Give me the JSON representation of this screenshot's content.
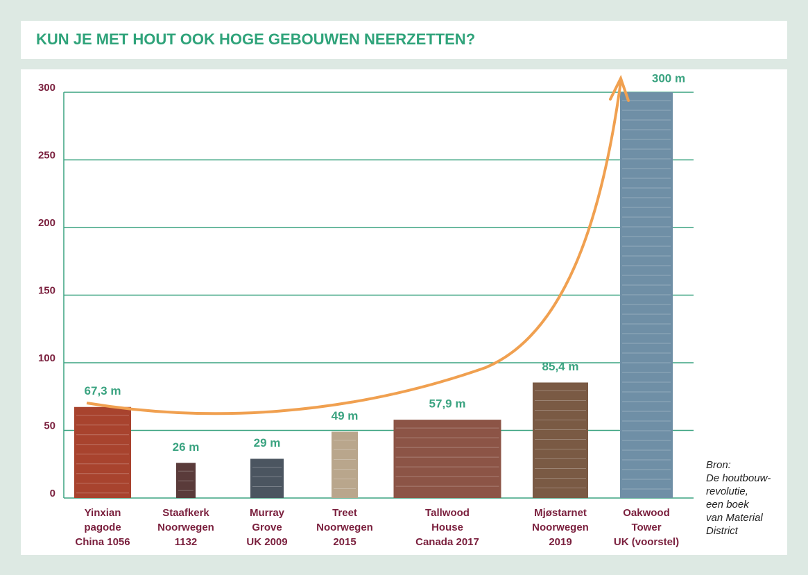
{
  "chart_data": {
    "type": "bar",
    "title": "KUN JE MET HOUT OOK HOGE GEBOUWEN NEERZETTEN?",
    "categories": [
      [
        "Yinxian",
        "pagode",
        "China 1056"
      ],
      [
        "Staafkerk",
        "Noorwegen",
        "1132"
      ],
      [
        "Murray",
        "Grove",
        "UK 2009"
      ],
      [
        "Treet",
        "Noorwegen",
        "2015"
      ],
      [
        "Tallwood",
        "House",
        "Canada 2017"
      ],
      [
        "Mjøstarnet",
        "Noorwegen",
        "2019"
      ],
      [
        "Oakwood",
        "Tower",
        "UK (voorstel)"
      ]
    ],
    "values": [
      67.3,
      26,
      29,
      49,
      57.9,
      85.4,
      300
    ],
    "value_labels": [
      "67,3 m",
      "26 m",
      "29 m",
      "49 m",
      "57,9 m",
      "85,4 m",
      "300 m"
    ],
    "colors": [
      "#a8432e",
      "#5a3b3a",
      "#4b5560",
      "#b9a68c",
      "#8c5446",
      "#7a5a44",
      "#6f8fa6"
    ],
    "ylim": [
      0,
      300
    ],
    "yticks": [
      0,
      50,
      100,
      150,
      200,
      250,
      300
    ],
    "grid": true,
    "source": [
      "Bron:",
      "De houtbouw-",
      "revolutie,",
      "een boek",
      "van Material",
      "District"
    ]
  }
}
